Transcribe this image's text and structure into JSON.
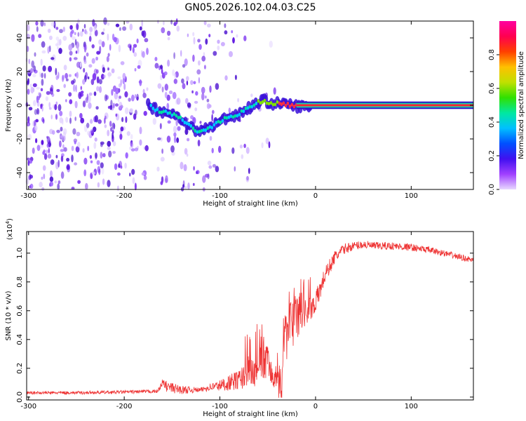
{
  "title": "GN05.2026.102.04.03.C25",
  "chart_data": [
    {
      "type": "heatmap",
      "xlabel": "Height of straight line (km)",
      "ylabel": "Frequency (Hz)",
      "xlim": [
        -302,
        165
      ],
      "ylim": [
        -50,
        50
      ],
      "x_ticks": [
        -300,
        -200,
        -100,
        0,
        100
      ],
      "y_ticks": [
        -40,
        -20,
        0,
        20,
        40
      ],
      "colorbar": {
        "label": "Normalized spectral amplitude",
        "range": [
          0,
          1
        ],
        "ticks": [
          "0.0",
          "0.2",
          "0.4",
          "0.6",
          "0.8"
        ],
        "colors": [
          "#e8d8ff",
          "#a040ff",
          "#4010f0",
          "#0050ff",
          "#00c0ff",
          "#00e8a0",
          "#30e000",
          "#c0e000",
          "#ffc000",
          "#ff4000",
          "#ff0050",
          "#ff00a0"
        ]
      },
      "ridge": {
        "x": [
          -175,
          -165,
          -150,
          -135,
          -125,
          -110,
          -95,
          -80,
          -65,
          -55,
          -45,
          -35,
          -25,
          -15,
          0,
          50,
          100,
          165
        ],
        "y": [
          0,
          -3,
          -5,
          -10,
          -16,
          -13,
          -8,
          -5,
          0,
          3,
          1,
          1,
          0,
          -1,
          0,
          0,
          0,
          0
        ]
      }
    },
    {
      "type": "line",
      "xlabel": "Height of straight line (km)",
      "ylabel": "SNR (10 * v/v)",
      "y_multiplier": "(x10",
      "y_multiplier_exp": "4",
      "xlim": [
        -302,
        165
      ],
      "ylim": [
        -0.02,
        1.15
      ],
      "x_ticks": [
        -300,
        -200,
        -100,
        0,
        100
      ],
      "y_ticks": [
        "0.0",
        "0.2",
        "0.4",
        "0.6",
        "0.8",
        "1.0"
      ],
      "series_color": "#ee3333",
      "envelope": {
        "x": [
          -302,
          -250,
          -200,
          -165,
          -160,
          -155,
          -140,
          -120,
          -110,
          -100,
          -80,
          -70,
          -60,
          -50,
          -45,
          -40,
          -36,
          -33,
          -30,
          -25,
          -20,
          -15,
          -10,
          -5,
          0,
          5,
          10,
          20,
          30,
          40,
          50,
          60,
          80,
          100,
          120,
          140,
          165
        ],
        "y": [
          0.03,
          0.03,
          0.035,
          0.04,
          0.1,
          0.07,
          0.05,
          0.05,
          0.07,
          0.08,
          0.12,
          0.17,
          0.2,
          0.25,
          0.18,
          0.1,
          0.08,
          0.3,
          0.45,
          0.5,
          0.55,
          0.6,
          0.58,
          0.62,
          0.66,
          0.75,
          0.85,
          0.97,
          1.03,
          1.05,
          1.06,
          1.05,
          1.05,
          1.04,
          1.02,
          0.99,
          0.95
        ]
      },
      "noise": {
        "x": [
          -302,
          -200,
          -165,
          -155,
          -120,
          -100,
          -80,
          -70,
          -60,
          -50,
          -40,
          -30,
          -20,
          -10,
          0,
          10,
          25,
          40,
          100,
          165
        ],
        "amp": [
          0.01,
          0.012,
          0.012,
          0.04,
          0.015,
          0.04,
          0.07,
          0.1,
          0.14,
          0.12,
          0.1,
          0.2,
          0.16,
          0.1,
          0.08,
          0.06,
          0.04,
          0.03,
          0.025,
          0.02
        ]
      }
    }
  ]
}
